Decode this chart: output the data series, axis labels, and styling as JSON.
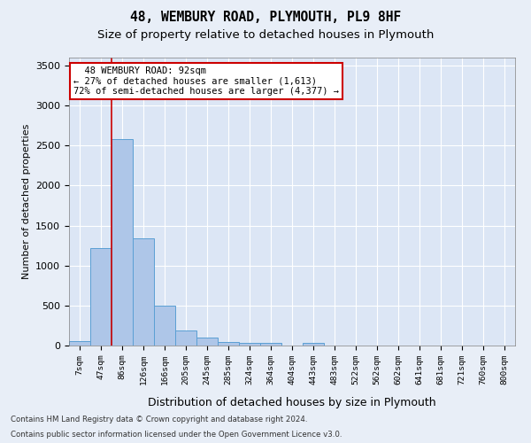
{
  "title1": "48, WEMBURY ROAD, PLYMOUTH, PL9 8HF",
  "title2": "Size of property relative to detached houses in Plymouth",
  "xlabel": "Distribution of detached houses by size in Plymouth",
  "ylabel": "Number of detached properties",
  "bin_labels": [
    "7sqm",
    "47sqm",
    "86sqm",
    "126sqm",
    "166sqm",
    "205sqm",
    "245sqm",
    "285sqm",
    "324sqm",
    "364sqm",
    "404sqm",
    "443sqm",
    "483sqm",
    "522sqm",
    "562sqm",
    "602sqm",
    "641sqm",
    "681sqm",
    "721sqm",
    "760sqm",
    "800sqm"
  ],
  "bar_values": [
    50,
    1220,
    2580,
    1340,
    500,
    190,
    100,
    45,
    35,
    30,
    0,
    35,
    0,
    0,
    0,
    0,
    0,
    0,
    0,
    0,
    0
  ],
  "bar_color": "#aec6e8",
  "bar_edge_color": "#5a9fd4",
  "annotation_box_color": "#ffffff",
  "annotation_box_edge": "#cc0000",
  "vline_x_index": 1.5,
  "property_label": "48 WEMBURY ROAD: 92sqm",
  "smaller_pct": "27%",
  "smaller_n": "1,613",
  "larger_pct": "72%",
  "larger_n": "4,377",
  "ylim": [
    0,
    3600
  ],
  "yticks": [
    0,
    500,
    1000,
    1500,
    2000,
    2500,
    3000,
    3500
  ],
  "footer1": "Contains HM Land Registry data © Crown copyright and database right 2024.",
  "footer2": "Contains public sector information licensed under the Open Government Licence v3.0.",
  "bg_color": "#e8eef7",
  "plot_bg_color": "#dce6f5"
}
